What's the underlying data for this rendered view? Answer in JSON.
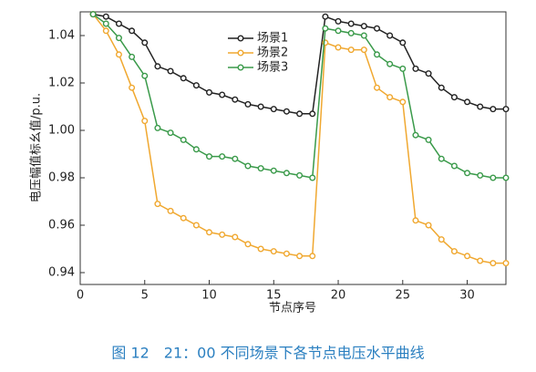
{
  "chart_data": {
    "type": "line",
    "xlabel": "节点序号",
    "ylabel": "电压幅值标幺值/p.u.",
    "caption": "图 12　21：00 不同场景下各节点电压水平曲线",
    "x": [
      1,
      2,
      3,
      4,
      5,
      6,
      7,
      8,
      9,
      10,
      11,
      12,
      13,
      14,
      15,
      16,
      17,
      18,
      19,
      20,
      21,
      22,
      23,
      24,
      25,
      26,
      27,
      28,
      29,
      30,
      31,
      32,
      33
    ],
    "series": [
      {
        "name": "场景1",
        "color": "#222222",
        "values": [
          1.049,
          1.048,
          1.045,
          1.042,
          1.037,
          1.027,
          1.025,
          1.022,
          1.019,
          1.016,
          1.015,
          1.013,
          1.011,
          1.01,
          1.009,
          1.008,
          1.007,
          1.007,
          1.048,
          1.046,
          1.045,
          1.044,
          1.043,
          1.04,
          1.037,
          1.026,
          1.024,
          1.018,
          1.014,
          1.012,
          1.01,
          1.009,
          1.009
        ]
      },
      {
        "name": "场景2",
        "color": "#f0a830",
        "values": [
          1.049,
          1.042,
          1.032,
          1.018,
          1.004,
          0.969,
          0.966,
          0.963,
          0.96,
          0.957,
          0.956,
          0.955,
          0.952,
          0.95,
          0.949,
          0.948,
          0.947,
          0.947,
          1.037,
          1.035,
          1.034,
          1.034,
          1.018,
          1.014,
          1.012,
          0.962,
          0.96,
          0.954,
          0.949,
          0.947,
          0.945,
          0.944,
          0.944
        ]
      },
      {
        "name": "场景3",
        "color": "#3a9a4a",
        "values": [
          1.049,
          1.045,
          1.039,
          1.031,
          1.023,
          1.001,
          0.999,
          0.996,
          0.992,
          0.989,
          0.989,
          0.988,
          0.985,
          0.984,
          0.983,
          0.982,
          0.981,
          0.98,
          1.043,
          1.042,
          1.041,
          1.04,
          1.032,
          1.028,
          1.026,
          0.998,
          0.996,
          0.988,
          0.985,
          0.982,
          0.981,
          0.98,
          0.98
        ]
      }
    ],
    "xlim": [
      0,
      33
    ],
    "xticks": [
      0,
      5,
      10,
      15,
      20,
      25,
      30
    ],
    "ylim": [
      0.935,
      1.05
    ],
    "yticks": [
      0.94,
      0.96,
      0.98,
      {
        "value": 1,
        "label": "1.00"
      },
      1.02,
      1.04
    ]
  }
}
